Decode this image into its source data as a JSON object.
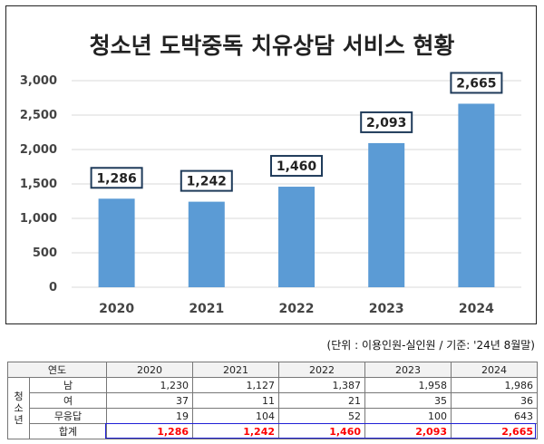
{
  "chart_data": {
    "type": "bar",
    "title": "청소년 도박중독 치유상담 서비스 현황",
    "categories": [
      "2020",
      "2021",
      "2022",
      "2023",
      "2024"
    ],
    "values": [
      1286,
      1242,
      1460,
      2093,
      2665
    ],
    "value_labels": [
      "1,286",
      "1,242",
      "1,460",
      "2,093",
      "2,665"
    ],
    "ylim": [
      0,
      3000
    ],
    "yticks": [
      0,
      500,
      1000,
      1500,
      2000,
      2500,
      3000
    ],
    "ytick_labels": [
      "0",
      "500",
      "1,000",
      "1,500",
      "2,000",
      "2,500",
      "3,000"
    ],
    "bar_color": "#5b9bd5",
    "label_border_color": "#1f3b5a",
    "grid": true,
    "legend": "none"
  },
  "unit_note": "(단위 : 이용인원-실인원 / 기준: '24년 8월말)",
  "table": {
    "header": [
      "연도",
      "2020",
      "2021",
      "2022",
      "2023",
      "2024"
    ],
    "group_label": "청소년",
    "group_chars": [
      "청",
      "소",
      "년"
    ],
    "rows": [
      {
        "label": "남",
        "values": [
          "1,230",
          "1,127",
          "1,387",
          "1,958",
          "1,986"
        ]
      },
      {
        "label": "여",
        "values": [
          "37",
          "11",
          "21",
          "35",
          "36"
        ]
      },
      {
        "label": "무응답",
        "values": [
          "19",
          "104",
          "52",
          "100",
          "643"
        ]
      }
    ],
    "total": {
      "label": "합계",
      "values": [
        "1,286",
        "1,242",
        "1,460",
        "2,093",
        "2,665"
      ]
    },
    "total_color": "#ff0000",
    "total_outline_color": "#1f1fd6"
  }
}
